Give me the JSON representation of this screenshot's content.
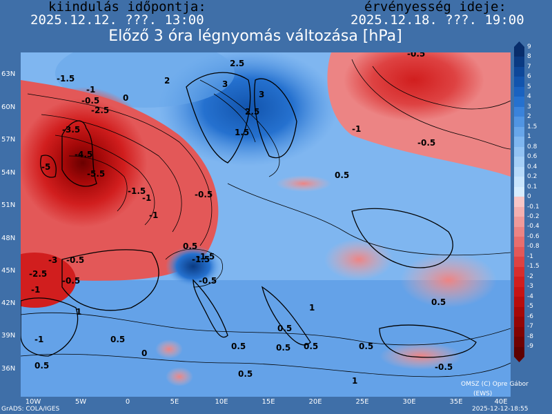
{
  "header": {
    "start_label": "kiindulás időpontja:",
    "start_value": "2025.12.12. ???. 13:00",
    "valid_label": "érvényesség ideje:",
    "valid_value": "2025.12.18. ???. 19:00",
    "title": "Előző 3 óra légnyomás változása [hPa]"
  },
  "axes": {
    "lat_labels": [
      "63N",
      "60N",
      "57N",
      "54N",
      "51N",
      "48N",
      "45N",
      "42N",
      "39N",
      "36N"
    ],
    "lon_labels": [
      "10W",
      "5W",
      "0",
      "5E",
      "10E",
      "15E",
      "20E",
      "25E",
      "30E",
      "35E",
      "40E"
    ]
  },
  "legend": {
    "labels": [
      "9",
      "8",
      "7",
      "6",
      "5",
      "4",
      "3",
      "2",
      "1.5",
      "1",
      "0.8",
      "0.6",
      "0.4",
      "0.2",
      "0.1",
      "0",
      "-0.1",
      "-0.2",
      "-0.4",
      "-0.6",
      "-0.8",
      "-1",
      "-1.5",
      "-2",
      "-3",
      "-4",
      "-5",
      "-6",
      "-7",
      "-8",
      "-9"
    ],
    "colors": [
      "#082d6b",
      "#0a3a82",
      "#0d4799",
      "#1254ad",
      "#1a62c0",
      "#2571cf",
      "#3a83db",
      "#5195e3",
      "#68a6ea",
      "#7fb6f0",
      "#93c3f4",
      "#a5cff7",
      "#b7dafa",
      "#c8e4fc",
      "#d7ecfd",
      "#f8c6c6",
      "#f4b0b0",
      "#f09a9a",
      "#ec8484",
      "#e86e6e",
      "#e35858",
      "#de4242",
      "#d82d2d",
      "#d11e1e",
      "#c71414",
      "#b80d0d",
      "#a60808",
      "#940505",
      "#820303",
      "#700202",
      "#5e0101"
    ]
  },
  "map_labels": [
    {
      "t": "-1.5"
    },
    {
      "t": "-1"
    },
    {
      "t": "-0.5"
    },
    {
      "t": "0"
    },
    {
      "t": "-2.5"
    },
    {
      "t": "-3.5"
    },
    {
      "t": "-5"
    },
    {
      "t": "-4.5"
    },
    {
      "t": "-5.5"
    },
    {
      "t": "-1.5"
    },
    {
      "t": "-1"
    },
    {
      "t": "-0.5"
    },
    {
      "t": "-1"
    },
    {
      "t": "-0.5"
    },
    {
      "t": "0.5"
    },
    {
      "t": "-1.5"
    },
    {
      "t": "-3"
    },
    {
      "t": "-2.5"
    },
    {
      "t": "-0.5"
    },
    {
      "t": "-1"
    },
    {
      "t": "1"
    },
    {
      "t": "0.5"
    },
    {
      "t": "0"
    },
    {
      "t": "0.5"
    },
    {
      "t": "2"
    },
    {
      "t": "2.5"
    },
    {
      "t": "3"
    },
    {
      "t": "3"
    },
    {
      "t": "2.5"
    },
    {
      "t": "1.5"
    },
    {
      "t": "0.5"
    },
    {
      "t": "-0.5"
    },
    {
      "t": "-1"
    },
    {
      "t": "-0.5"
    },
    {
      "t": "-1.5"
    },
    {
      "t": "-0.5"
    },
    {
      "t": "0.5"
    },
    {
      "t": "0.5"
    },
    {
      "t": "0.5"
    },
    {
      "t": "0.5"
    },
    {
      "t": "0.5"
    },
    {
      "t": "0.5"
    },
    {
      "t": "1"
    },
    {
      "t": "1"
    },
    {
      "t": "0.5"
    },
    {
      "t": "-0.5"
    },
    {
      "t": "-1"
    }
  ],
  "footer": {
    "left": "GrADS: COLA/IGES",
    "right": "2025-12-12-18:55",
    "copyright1": "OMSZ (C) Opre Gábor",
    "copyright2": "(EWS)"
  }
}
